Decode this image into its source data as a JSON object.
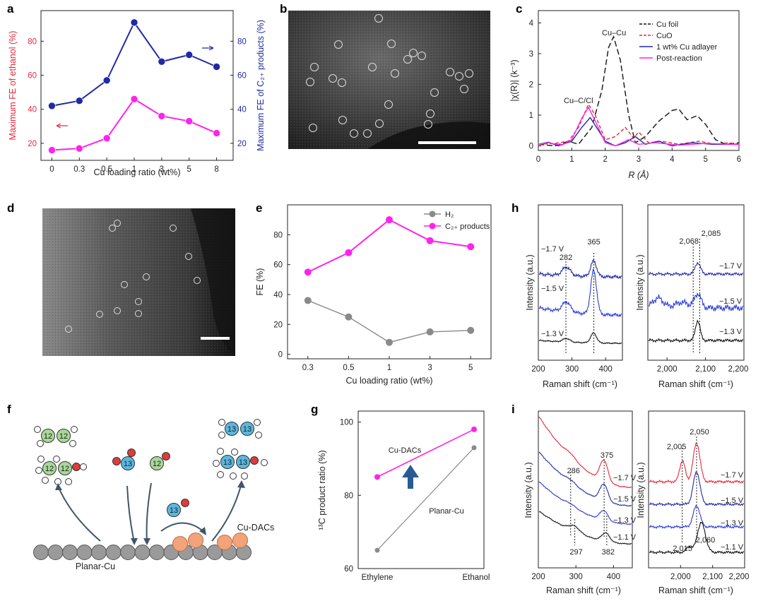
{
  "panels": {
    "a": {
      "label": "a"
    },
    "b": {
      "label": "b"
    },
    "c": {
      "label": "c"
    },
    "d": {
      "label": "d"
    },
    "e": {
      "label": "e"
    },
    "f": {
      "label": "f"
    },
    "g": {
      "label": "g"
    },
    "h": {
      "label": "h"
    },
    "i": {
      "label": "i"
    }
  },
  "colors": {
    "red": "#e8283a",
    "blue": "#1e2aa6",
    "magenta": "#ff22ee",
    "gray": "#8a8a8a",
    "black": "#111111",
    "orange": "#f2a37a",
    "green": "#a8d898",
    "cyan": "#5ab8e0"
  },
  "chart_data": [
    {
      "id": "a",
      "type": "line",
      "categories": [
        "0",
        "0.3",
        "0.5",
        "1",
        "3",
        "5",
        "8"
      ],
      "xlabel": "Cu loading ratio (wt%)",
      "ylabel": "Maximum FE of ethanol (%)",
      "ylabel_right": "Maximum FE of C₂₊ products (%)",
      "ylim": [
        10,
        98
      ],
      "yticks": [
        20,
        40,
        60,
        80
      ],
      "series": [
        {
          "axis": "right",
          "color": "#1e2aa6",
          "values": [
            42,
            45,
            57,
            91,
            68,
            72,
            65
          ]
        },
        {
          "axis": "left",
          "color": "#ff22ee",
          "values": [
            16,
            17,
            23,
            46,
            36,
            33,
            26
          ]
        }
      ]
    },
    {
      "id": "c",
      "type": "line",
      "xlabel": "R (Å)",
      "ylabel": "|χ(R)| (k⁻³)",
      "xlim": [
        0,
        6
      ],
      "ylim": [
        -0.15,
        4.4
      ],
      "xticks": [
        0,
        1,
        2,
        3,
        4,
        5,
        6
      ],
      "yticks": [
        0,
        1,
        2,
        3,
        4
      ],
      "annotations": [
        "Cu–Cu",
        "Cu–C/Cl"
      ],
      "legend": [
        "Cu foil",
        "CuO",
        "1 wt% Cu adlayer",
        "Post-reaction"
      ],
      "series": [
        {
          "name": "Cu foil",
          "color": "#111111",
          "dash": "8,4",
          "points": [
            [
              0,
              0.05
            ],
            [
              0.5,
              0.0
            ],
            [
              0.9,
              0.15
            ],
            [
              1.2,
              0.05
            ],
            [
              1.6,
              0.6
            ],
            [
              1.9,
              1.8
            ],
            [
              2.1,
              3.2
            ],
            [
              2.25,
              3.55
            ],
            [
              2.45,
              2.8
            ],
            [
              2.7,
              1.0
            ],
            [
              2.9,
              0.1
            ],
            [
              3.2,
              0.3
            ],
            [
              3.6,
              0.8
            ],
            [
              4.0,
              1.15
            ],
            [
              4.2,
              1.2
            ],
            [
              4.45,
              0.85
            ],
            [
              4.75,
              0.98
            ],
            [
              5.0,
              0.7
            ],
            [
              5.3,
              0.2
            ],
            [
              5.6,
              0.05
            ],
            [
              6,
              0.1
            ]
          ]
        },
        {
          "name": "CuO",
          "color": "#e8283a",
          "dash": "5,3",
          "points": [
            [
              0,
              0.05
            ],
            [
              0.5,
              0.08
            ],
            [
              0.9,
              0.15
            ],
            [
              1.2,
              0.6
            ],
            [
              1.5,
              1.35
            ],
            [
              1.7,
              1.0
            ],
            [
              2.0,
              0.2
            ],
            [
              2.3,
              0.3
            ],
            [
              2.6,
              0.6
            ],
            [
              2.85,
              0.25
            ],
            [
              3.0,
              0.45
            ],
            [
              3.3,
              0.1
            ],
            [
              3.7,
              0.15
            ],
            [
              4.2,
              0.05
            ],
            [
              4.8,
              0.15
            ],
            [
              5.3,
              0.05
            ],
            [
              5.7,
              0.1
            ],
            [
              6,
              0.05
            ]
          ]
        },
        {
          "name": "1 wt% Cu adlayer",
          "color": "#1e2aa6",
          "dash": "",
          "points": [
            [
              0,
              0.05
            ],
            [
              0.3,
              0.12
            ],
            [
              0.6,
              0.0
            ],
            [
              1.0,
              0.15
            ],
            [
              1.3,
              0.6
            ],
            [
              1.55,
              0.92
            ],
            [
              1.8,
              0.5
            ],
            [
              2.0,
              0.15
            ],
            [
              2.3,
              0.0
            ],
            [
              2.6,
              0.1
            ],
            [
              2.9,
              0.3
            ],
            [
              3.2,
              0.05
            ],
            [
              3.6,
              0.15
            ],
            [
              4.0,
              0.0
            ],
            [
              4.6,
              0.1
            ],
            [
              5.2,
              0.05
            ],
            [
              6,
              0.05
            ]
          ]
        },
        {
          "name": "Post-reaction",
          "color": "#ff22ee",
          "dash": "",
          "points": [
            [
              0,
              0.05
            ],
            [
              0.3,
              0.1
            ],
            [
              0.7,
              0.02
            ],
            [
              1.0,
              0.2
            ],
            [
              1.3,
              0.9
            ],
            [
              1.5,
              1.25
            ],
            [
              1.75,
              0.7
            ],
            [
              2.0,
              0.1
            ],
            [
              2.3,
              0.0
            ],
            [
              2.7,
              0.2
            ],
            [
              3.0,
              0.05
            ],
            [
              3.5,
              0.1
            ],
            [
              4.2,
              0.02
            ],
            [
              5.0,
              0.08
            ],
            [
              6,
              0.04
            ]
          ]
        }
      ]
    },
    {
      "id": "e",
      "type": "line",
      "categories": [
        "0.3",
        "0.5",
        "1",
        "3",
        "5"
      ],
      "xlabel": "Cu loading ratio (wt%)",
      "ylabel": "FE (%)",
      "ylim": [
        -3,
        100
      ],
      "yticks": [
        0,
        20,
        40,
        60,
        80
      ],
      "series": [
        {
          "name": "H₂",
          "color": "#8a8a8a",
          "values": [
            36,
            25,
            8,
            15,
            16
          ]
        },
        {
          "name": "C₂₊ products",
          "color": "#ff22ee",
          "values": [
            55,
            68,
            90,
            76,
            72
          ]
        }
      ]
    },
    {
      "id": "g",
      "type": "line",
      "categories": [
        "Ethylene",
        "Ethanol"
      ],
      "ylabel": "¹³C product ratio (%)",
      "ylim": [
        60,
        103
      ],
      "yticks": [
        60,
        80,
        100
      ],
      "series": [
        {
          "name": "Cu-DACs",
          "color": "#ff22ee",
          "values": [
            85,
            98
          ]
        },
        {
          "name": "Planar-Cu",
          "color": "#8a8a8a",
          "values": [
            65,
            93
          ]
        }
      ]
    },
    {
      "id": "h",
      "type": "line",
      "xlabel": "Raman shift (cm⁻¹)",
      "ylabel": "Intensity (a.u.)",
      "left": {
        "xlim": [
          200,
          450
        ],
        "xticks": [
          "200",
          "300",
          "400"
        ],
        "peaks": [
          "282",
          "365"
        ]
      },
      "right": {
        "xlim": [
          1950,
          2200
        ],
        "xticks": [
          "2,000",
          "2,100",
          "2,200"
        ],
        "peaks": [
          "2,068",
          "2,085"
        ]
      },
      "traces": [
        "−1.7 V",
        "−1.5 V",
        "−1.3 V"
      ]
    },
    {
      "id": "i",
      "type": "line",
      "xlabel": "Raman shift (cm⁻¹)",
      "ylabel": "Intensity (a.u.)",
      "left": {
        "xlim": [
          200,
          450
        ],
        "xticks": [
          "200",
          "300",
          "400"
        ],
        "peaks": [
          "286",
          "375",
          "297",
          "382"
        ]
      },
      "right": {
        "xlim": [
          1900,
          2200
        ],
        "xticks": [
          "2,000",
          "2,100",
          "2,200"
        ],
        "peaks": [
          "2,005",
          "2,050",
          "2,015",
          "2,060"
        ]
      },
      "traces": [
        "−1.7 V",
        "−1.5 V",
        "−1.3 V",
        "−1.1 V"
      ]
    }
  ],
  "schematic": {
    "labels": {
      "planar": "Planar-Cu",
      "dacs": "Cu-DACs"
    },
    "atoms": {
      "c12": "12",
      "c13": "13"
    }
  }
}
